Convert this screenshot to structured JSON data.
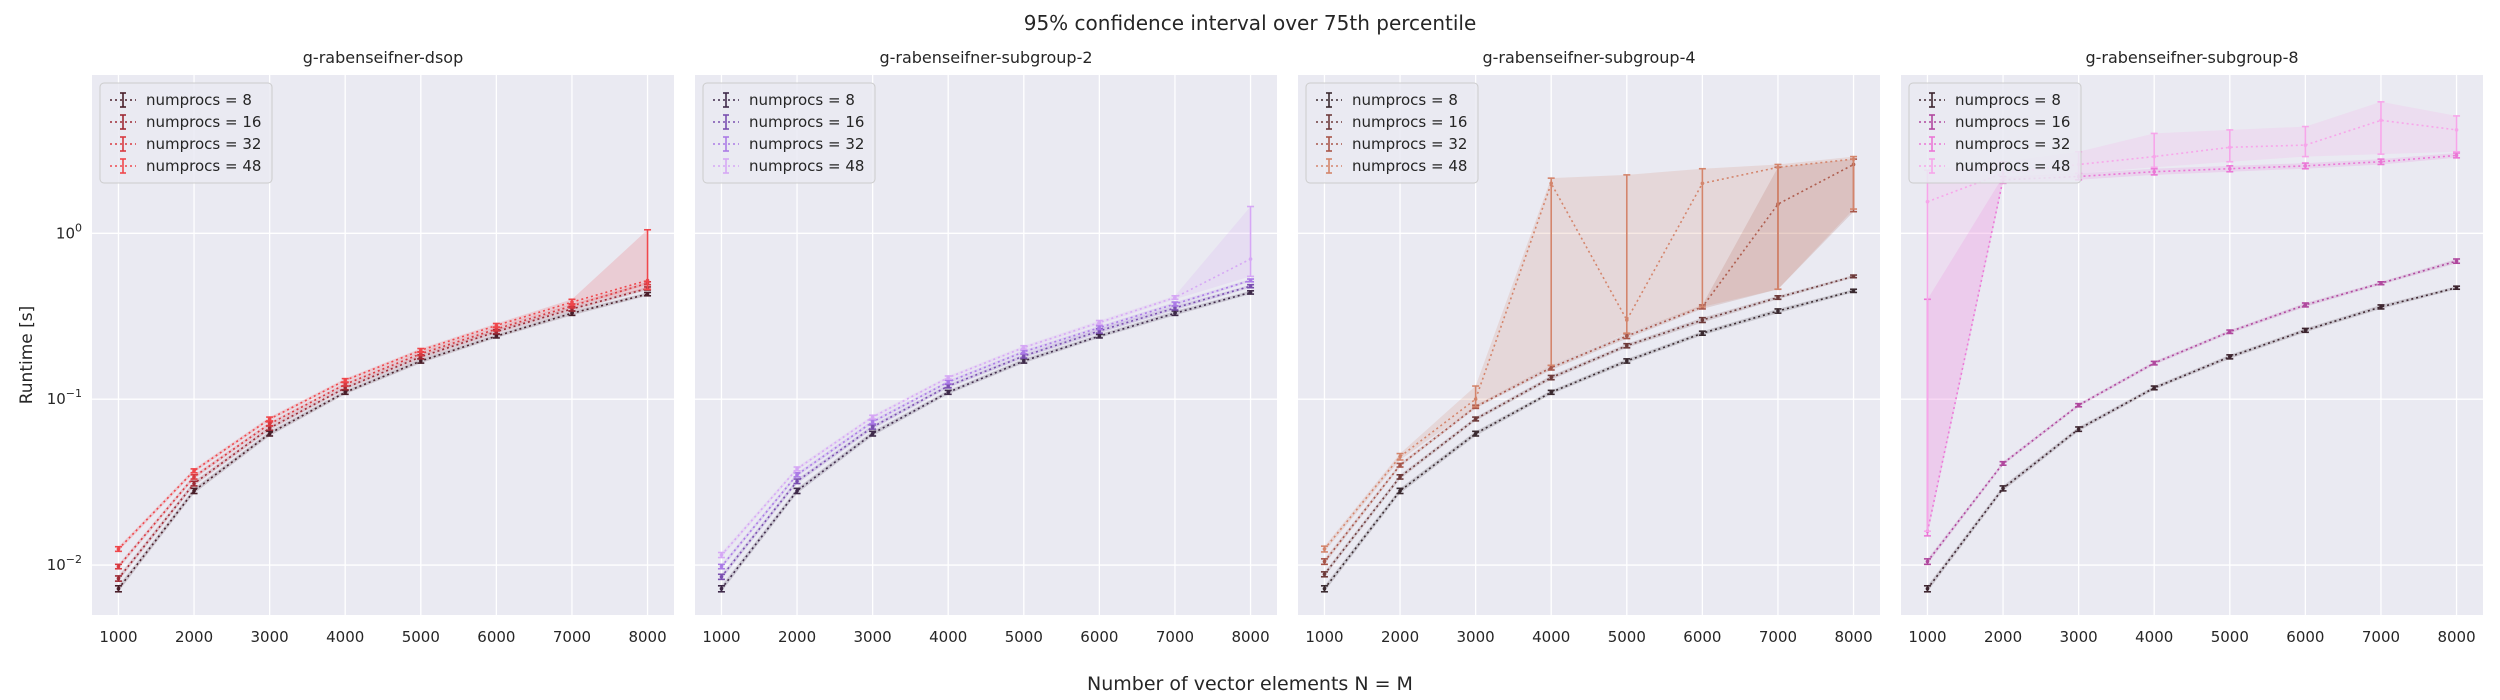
{
  "figure": {
    "title": "95% confidence interval over 75th percentile",
    "xlabel": "Number of vector elements N = M",
    "ylabel": "Runtime [s]",
    "yscale": "log",
    "ylim": [
      0.005,
      9
    ],
    "xlim": [
      650,
      8350
    ],
    "y_tick_labels": [
      "10^{-2}",
      "10^{-1}",
      "10^{0}"
    ],
    "grid": true,
    "legend_position": "top-left",
    "background": "#eaeaf2"
  },
  "chart_data": [
    {
      "type": "line",
      "title": "g-rabenseifner-dsop",
      "x": [
        1000,
        2000,
        3000,
        4000,
        5000,
        6000,
        7000,
        8000
      ],
      "series": [
        {
          "name": "numprocs = 8",
          "color": "#4a1f2a",
          "values": [
            0.0072,
            0.028,
            0.062,
            0.11,
            0.17,
            0.24,
            0.33,
            0.43
          ],
          "lower": [
            0.0069,
            0.027,
            0.06,
            0.107,
            0.165,
            0.234,
            0.32,
            0.42
          ],
          "upper": [
            0.0075,
            0.029,
            0.064,
            0.113,
            0.175,
            0.246,
            0.34,
            0.44
          ]
        },
        {
          "name": "numprocs = 16",
          "color": "#9e2a35",
          "values": [
            0.0083,
            0.031,
            0.067,
            0.117,
            0.18,
            0.255,
            0.35,
            0.465
          ],
          "lower": [
            0.008,
            0.03,
            0.065,
            0.114,
            0.175,
            0.248,
            0.34,
            0.455
          ],
          "upper": [
            0.0086,
            0.032,
            0.069,
            0.12,
            0.185,
            0.262,
            0.36,
            0.475
          ]
        },
        {
          "name": "numprocs = 32",
          "color": "#d93a40",
          "values": [
            0.0098,
            0.034,
            0.071,
            0.123,
            0.188,
            0.265,
            0.365,
            0.5
          ],
          "lower": [
            0.0095,
            0.033,
            0.069,
            0.12,
            0.183,
            0.258,
            0.355,
            0.49
          ],
          "upper": [
            0.0101,
            0.035,
            0.073,
            0.126,
            0.193,
            0.272,
            0.375,
            0.51
          ]
        },
        {
          "name": "numprocs = 48",
          "color": "#f0474c",
          "values": [
            0.0125,
            0.037,
            0.076,
            0.13,
            0.197,
            0.278,
            0.385,
            0.52
          ],
          "lower": [
            0.0121,
            0.036,
            0.074,
            0.127,
            0.192,
            0.27,
            0.37,
            0.46
          ],
          "upper": [
            0.0129,
            0.038,
            0.078,
            0.133,
            0.202,
            0.286,
            0.4,
            1.05
          ]
        }
      ]
    },
    {
      "type": "line",
      "title": "g-rabenseifner-subgroup-2",
      "x": [
        1000,
        2000,
        3000,
        4000,
        5000,
        6000,
        7000,
        8000
      ],
      "series": [
        {
          "name": "numprocs = 8",
          "color": "#3f2a4a",
          "values": [
            0.0072,
            0.028,
            0.062,
            0.11,
            0.17,
            0.24,
            0.33,
            0.44
          ],
          "lower": [
            0.0069,
            0.027,
            0.06,
            0.107,
            0.165,
            0.234,
            0.32,
            0.43
          ],
          "upper": [
            0.0075,
            0.029,
            0.064,
            0.113,
            0.175,
            0.246,
            0.34,
            0.45
          ]
        },
        {
          "name": "numprocs = 16",
          "color": "#7a4fb0",
          "values": [
            0.0085,
            0.032,
            0.068,
            0.12,
            0.182,
            0.258,
            0.355,
            0.48
          ],
          "lower": [
            0.0082,
            0.031,
            0.066,
            0.117,
            0.177,
            0.25,
            0.345,
            0.47
          ],
          "upper": [
            0.0088,
            0.033,
            0.07,
            0.123,
            0.187,
            0.266,
            0.365,
            0.49
          ]
        },
        {
          "name": "numprocs = 32",
          "color": "#ab7be6",
          "values": [
            0.0098,
            0.035,
            0.073,
            0.127,
            0.193,
            0.27,
            0.375,
            0.52
          ],
          "lower": [
            0.0095,
            0.034,
            0.071,
            0.124,
            0.188,
            0.263,
            0.365,
            0.51
          ],
          "upper": [
            0.0101,
            0.036,
            0.075,
            0.13,
            0.198,
            0.277,
            0.385,
            0.53
          ]
        },
        {
          "name": "numprocs = 48",
          "color": "#d6a8f5",
          "values": [
            0.0115,
            0.038,
            0.078,
            0.135,
            0.205,
            0.29,
            0.41,
            0.7
          ],
          "lower": [
            0.0111,
            0.037,
            0.076,
            0.132,
            0.2,
            0.282,
            0.4,
            0.55
          ],
          "upper": [
            0.0119,
            0.039,
            0.08,
            0.138,
            0.21,
            0.298,
            0.42,
            1.45
          ]
        }
      ]
    },
    {
      "type": "line",
      "title": "g-rabenseifner-subgroup-4",
      "x": [
        1000,
        2000,
        3000,
        4000,
        5000,
        6000,
        7000,
        8000
      ],
      "series": [
        {
          "name": "numprocs = 8",
          "color": "#3a2a30",
          "values": [
            0.0072,
            0.028,
            0.062,
            0.11,
            0.17,
            0.25,
            0.34,
            0.45
          ],
          "lower": [
            0.0069,
            0.027,
            0.06,
            0.107,
            0.165,
            0.243,
            0.33,
            0.44
          ],
          "upper": [
            0.0075,
            0.029,
            0.064,
            0.113,
            0.175,
            0.257,
            0.35,
            0.46
          ]
        },
        {
          "name": "numprocs = 16",
          "color": "#6e3b3b",
          "values": [
            0.0088,
            0.034,
            0.076,
            0.135,
            0.21,
            0.3,
            0.41,
            0.55
          ],
          "lower": [
            0.0085,
            0.033,
            0.074,
            0.131,
            0.204,
            0.29,
            0.4,
            0.54
          ],
          "upper": [
            0.0091,
            0.035,
            0.078,
            0.139,
            0.216,
            0.31,
            0.42,
            0.56
          ]
        },
        {
          "name": "numprocs = 32",
          "color": "#a8564a",
          "values": [
            0.0105,
            0.04,
            0.09,
            0.155,
            0.24,
            0.36,
            1.5,
            2.6
          ],
          "lower": [
            0.0101,
            0.039,
            0.088,
            0.15,
            0.232,
            0.35,
            0.46,
            1.35
          ],
          "upper": [
            0.0109,
            0.041,
            0.092,
            0.16,
            0.248,
            0.37,
            2.5,
            2.8
          ]
        },
        {
          "name": "numprocs = 48",
          "color": "#d4856c",
          "values": [
            0.0125,
            0.045,
            0.1,
            2.0,
            0.3,
            2.0,
            2.5,
            2.8
          ],
          "lower": [
            0.012,
            0.043,
            0.09,
            0.16,
            0.25,
            0.36,
            0.46,
            1.4
          ],
          "upper": [
            0.013,
            0.047,
            0.12,
            2.15,
            2.25,
            2.45,
            2.6,
            2.9
          ]
        }
      ]
    },
    {
      "type": "line",
      "title": "g-rabenseifner-subgroup-8",
      "x": [
        1000,
        2000,
        3000,
        4000,
        5000,
        6000,
        7000,
        8000
      ],
      "series": [
        {
          "name": "numprocs = 8",
          "color": "#3e2630",
          "values": [
            0.0072,
            0.029,
            0.066,
            0.117,
            0.18,
            0.26,
            0.36,
            0.47
          ],
          "lower": [
            0.0069,
            0.028,
            0.064,
            0.114,
            0.175,
            0.253,
            0.35,
            0.46
          ],
          "upper": [
            0.0075,
            0.03,
            0.068,
            0.12,
            0.185,
            0.267,
            0.37,
            0.48
          ]
        },
        {
          "name": "numprocs = 16",
          "color": "#b0489e",
          "values": [
            0.0105,
            0.041,
            0.092,
            0.165,
            0.255,
            0.37,
            0.5,
            0.68
          ],
          "lower": [
            0.0101,
            0.04,
            0.09,
            0.161,
            0.249,
            0.36,
            0.49,
            0.66
          ],
          "upper": [
            0.0109,
            0.042,
            0.094,
            0.169,
            0.261,
            0.38,
            0.51,
            0.7
          ]
        },
        {
          "name": "numprocs = 32",
          "color": "#eb77d6",
          "values": [
            0.016,
            2.1,
            2.2,
            2.35,
            2.45,
            2.55,
            2.7,
            2.95
          ],
          "lower": [
            0.015,
            2.0,
            2.1,
            2.25,
            2.35,
            2.45,
            2.6,
            2.85
          ],
          "upper": [
            0.4,
            2.2,
            2.3,
            2.45,
            2.55,
            2.65,
            2.8,
            3.05
          ]
        },
        {
          "name": "numprocs = 48",
          "color": "#f7a6ea",
          "values": [
            1.55,
            2.3,
            2.6,
            2.9,
            3.3,
            3.4,
            4.8,
            4.2
          ],
          "lower": [
            0.016,
            2.1,
            2.3,
            2.5,
            2.7,
            2.9,
            3.0,
            3.1
          ],
          "upper": [
            2.4,
            2.7,
            3.1,
            4.0,
            4.2,
            4.4,
            6.2,
            5.1
          ]
        }
      ]
    }
  ]
}
